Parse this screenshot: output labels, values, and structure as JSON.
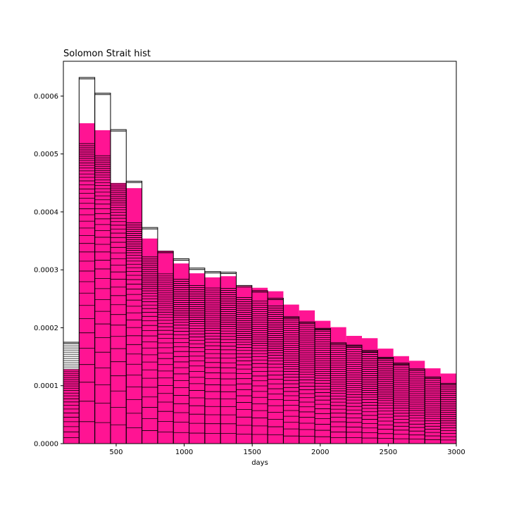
{
  "chart_data": {
    "type": "bar",
    "title": "Solomon Strait hist",
    "xlabel": "days",
    "ylabel": "",
    "xlim": [
      112,
      3000
    ],
    "ylim": [
      0,
      0.00066
    ],
    "x_ticks": [
      500,
      1000,
      1500,
      2000,
      2500,
      3000
    ],
    "x_tick_labels": [
      "500",
      "1000",
      "1500",
      "2000",
      "2500",
      "3000"
    ],
    "y_ticks": [
      0,
      0.0001,
      0.0002,
      0.0003,
      0.0004,
      0.0005,
      0.0006
    ],
    "y_tick_labels": [
      "0.0000",
      "0.0001",
      "0.0002",
      "0.0003",
      "0.0004",
      "0.0005",
      "0.0006"
    ],
    "bin_edges": [
      112,
      227.5,
      343,
      458.5,
      574,
      689.5,
      805,
      920.5,
      1036,
      1151.5,
      1267,
      1382.5,
      1498,
      1613.5,
      1729,
      1844.5,
      1960,
      2075.5,
      2191,
      2306.5,
      2422,
      2537.5,
      2653,
      2768.5,
      2884,
      3000
    ],
    "filled_color": "#ff1493",
    "outline_color": "#000000",
    "series": [
      {
        "style": "filled",
        "values": [
          0.000128,
          0.000553,
          0.000541,
          0.00045,
          0.000441,
          0.000354,
          0.000333,
          0.000311,
          0.000294,
          0.000287,
          0.000289,
          0.000272,
          0.000269,
          0.000263,
          0.00024,
          0.00023,
          0.000212,
          0.000201,
          0.000186,
          0.000182,
          0.000164,
          0.000151,
          0.000143,
          0.00013,
          0.000121
        ]
      },
      {
        "style": "outline",
        "values": [
          0.000175,
          0.000632,
          0.000605,
          0.000542,
          0.000453,
          0.000373,
          0.000332,
          0.000319,
          0.000303,
          0.000297,
          0.000296,
          0.000273,
          0.000264,
          0.000251,
          0.000219,
          0.00021,
          0.000199,
          0.000174,
          0.00017,
          0.000161,
          0.000149,
          0.000139,
          0.000129,
          0.000115,
          0.000104
        ]
      }
    ]
  }
}
